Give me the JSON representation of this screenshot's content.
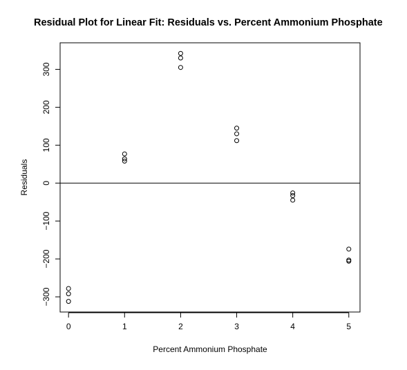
{
  "chart_data": {
    "type": "scatter",
    "title": "Residual Plot for Linear Fit: Residuals vs. Percent Ammonium Phosphate",
    "xlabel": "Percent Ammonium Phosphate",
    "ylabel": "Residuals",
    "xlim": [
      -0.15,
      5.2
    ],
    "ylim": [
      -340,
      370
    ],
    "xticks": [
      0,
      1,
      2,
      3,
      4,
      5
    ],
    "xtick_labels": [
      "0",
      "1",
      "2",
      "3",
      "4",
      "5"
    ],
    "yticks": [
      -300,
      -200,
      -100,
      0,
      100,
      200,
      300
    ],
    "ytick_labels": [
      "−300",
      "−200",
      "−100",
      "0",
      "100",
      "200",
      "300"
    ],
    "reference_line": {
      "y": 0
    },
    "grid": false,
    "legend": "none",
    "marker": "open-circle",
    "color": "#000000",
    "points": [
      {
        "x": 0,
        "y": -278
      },
      {
        "x": 0,
        "y": -292
      },
      {
        "x": 0,
        "y": -312
      },
      {
        "x": 1,
        "y": 77
      },
      {
        "x": 1,
        "y": 64
      },
      {
        "x": 1,
        "y": 58
      },
      {
        "x": 2,
        "y": 342
      },
      {
        "x": 2,
        "y": 330
      },
      {
        "x": 2,
        "y": 305
      },
      {
        "x": 3,
        "y": 145
      },
      {
        "x": 3,
        "y": 130
      },
      {
        "x": 3,
        "y": 112
      },
      {
        "x": 4,
        "y": -26
      },
      {
        "x": 4,
        "y": -33
      },
      {
        "x": 4,
        "y": -45
      },
      {
        "x": 5,
        "y": -174
      },
      {
        "x": 5,
        "y": -203
      },
      {
        "x": 5,
        "y": -206
      }
    ]
  }
}
